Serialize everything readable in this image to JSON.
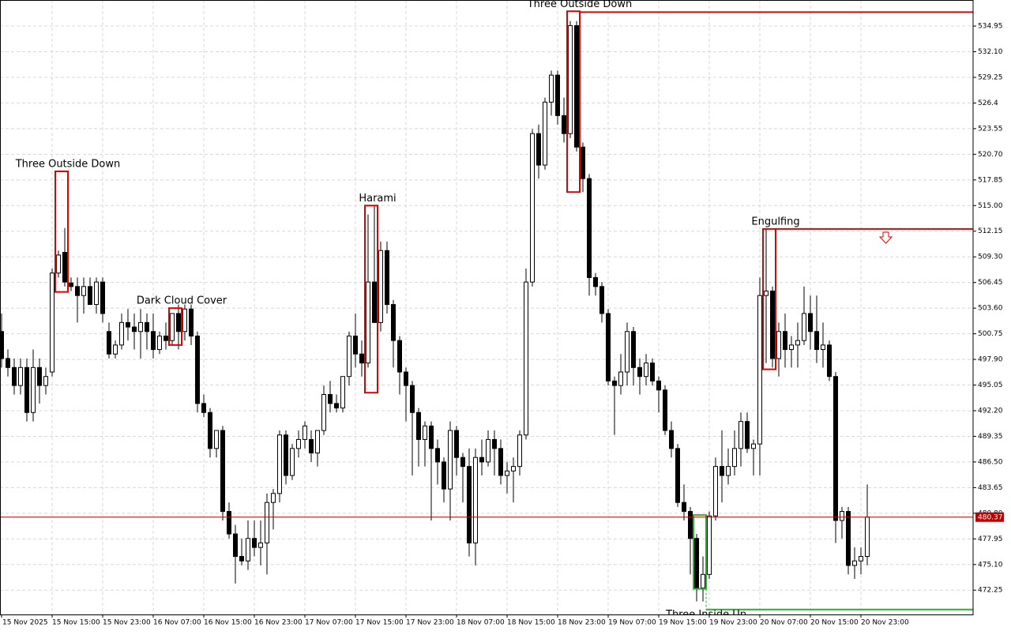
{
  "chart_data": {
    "type": "candlestick",
    "up_color": "#ffffff",
    "down_color": "#000000",
    "outline_color": "#000000",
    "grid": true,
    "ylim": [
      469.55,
      537.85
    ],
    "yticks": [
      534.95,
      {
        "value": 532.1,
        "label": "532.10"
      },
      529.25,
      526.4,
      523.55,
      {
        "value": 520.7,
        "label": "520.70"
      },
      517.85,
      {
        "value": 515,
        "label": "515.00"
      },
      512.15,
      {
        "value": 509.3,
        "label": "509.30"
      },
      506.45,
      {
        "value": 503.6,
        "label": "503.60"
      },
      500.75,
      {
        "value": 497.9,
        "label": "497.90"
      },
      495.05,
      {
        "value": 492.2,
        "label": "492.20"
      },
      489.35,
      {
        "value": 486.5,
        "label": "486.50"
      },
      483.65,
      {
        "value": 480.8,
        "label": "480.80"
      },
      477.95,
      {
        "value": 475.1,
        "label": "475.10"
      },
      472.25
    ],
    "last_price": 480.37,
    "last_price_color": "#c00000",
    "categories": [
      "15 Nov 2025",
      null,
      null,
      null,
      null,
      null,
      null,
      null,
      "15 Nov 15:00",
      null,
      null,
      null,
      null,
      null,
      null,
      null,
      "15 Nov 23:00",
      null,
      null,
      null,
      null,
      null,
      null,
      null,
      "16 Nov 07:00",
      null,
      null,
      null,
      null,
      null,
      null,
      null,
      "16 Nov 15:00",
      null,
      null,
      null,
      null,
      null,
      null,
      null,
      "16 Nov 23:00",
      null,
      null,
      null,
      null,
      null,
      null,
      null,
      "17 Nov 07:00",
      null,
      null,
      null,
      null,
      null,
      null,
      null,
      "17 Nov 15:00",
      null,
      null,
      null,
      null,
      null,
      null,
      null,
      "17 Nov 23:00",
      null,
      null,
      null,
      null,
      null,
      null,
      null,
      "18 Nov 07:00",
      null,
      null,
      null,
      null,
      null,
      null,
      null,
      "18 Nov 15:00",
      null,
      null,
      null,
      null,
      null,
      null,
      null,
      "18 Nov 23:00",
      null,
      null,
      null,
      null,
      null,
      null,
      null,
      "19 Nov 07:00",
      null,
      null,
      null,
      null,
      null,
      null,
      null,
      "19 Nov 15:00",
      null,
      null,
      null,
      null,
      null,
      null,
      null,
      "19 Nov 23:00",
      null,
      null,
      null,
      null,
      null,
      null,
      null,
      "20 Nov 07:00",
      null,
      null,
      null,
      null,
      null,
      null,
      null,
      "20 Nov 15:00",
      null,
      null,
      null,
      null,
      null,
      null,
      null,
      "20 Nov 23:00",
      null
    ],
    "open": [
      501,
      498,
      497,
      495,
      497,
      492,
      497,
      495,
      496.5,
      507.5,
      509.8,
      506.4,
      506,
      505,
      506,
      504,
      506.5,
      501,
      498.5,
      499.5,
      502,
      501.5,
      501,
      502,
      501,
      499,
      500.5,
      500,
      503,
      501,
      503.5,
      500.5,
      493,
      492,
      488,
      490,
      481,
      478.5,
      476,
      475.5,
      478,
      477,
      477.5,
      482,
      483,
      489.5,
      485,
      488,
      489,
      489,
      487.5,
      490,
      494,
      493,
      492.5,
      496,
      500.5,
      498.5,
      497.5,
      506.5,
      502,
      510,
      504,
      500,
      496.5,
      495,
      492,
      489,
      490.5,
      488,
      486.5,
      483.5,
      490,
      487,
      486,
      477.5,
      487,
      486.5,
      489,
      488,
      485,
      485.5,
      486,
      489.5,
      506.5,
      523,
      519.5,
      526.5,
      529.5,
      525,
      523,
      535,
      521.5,
      518,
      507,
      506,
      503,
      495.5,
      495,
      496.5,
      501,
      497,
      496,
      497.5,
      495.5,
      494.5,
      490,
      488,
      482,
      481,
      478,
      472.5,
      474,
      480.5,
      486,
      485,
      486,
      488,
      491,
      488,
      488.5,
      505,
      505.5,
      498,
      501,
      499,
      499.5,
      500,
      503,
      501,
      499,
      499.5,
      496,
      480,
      481,
      475,
      475.5,
      476
    ],
    "high": [
      503,
      499,
      498,
      498,
      498,
      499,
      498,
      497,
      508,
      510,
      512.5,
      507,
      507,
      507,
      507,
      507,
      507,
      502,
      500,
      503,
      503.5,
      503,
      503.5,
      503,
      503,
      501,
      502,
      503,
      504,
      504,
      504,
      501,
      494,
      492.5,
      490,
      490.5,
      482,
      479.5,
      478,
      480,
      480,
      480,
      483,
      483.5,
      490,
      490,
      488.5,
      490,
      491,
      490,
      490,
      495,
      495.5,
      494,
      496,
      501,
      503,
      500,
      514,
      515,
      511,
      511,
      504.5,
      500.5,
      497,
      495.5,
      492.5,
      491,
      491,
      489,
      487,
      491,
      490.5,
      487.5,
      488,
      488,
      489,
      490,
      490,
      489,
      486.5,
      487,
      490,
      508,
      523.5,
      524,
      527,
      530,
      530,
      527,
      535.5,
      535.5,
      522,
      518.5,
      507.5,
      506.5,
      503.5,
      496,
      498.5,
      502,
      501.5,
      498,
      498.5,
      498,
      496,
      495,
      491,
      488.5,
      484,
      481.5,
      478.5,
      476,
      481,
      487,
      490,
      488,
      490,
      492,
      492,
      489,
      507,
      512.5,
      506,
      502,
      503,
      500.5,
      502,
      506,
      505,
      505,
      502,
      500,
      496.5,
      481.5,
      481.5,
      477,
      477,
      484
    ],
    "low": [
      497,
      496,
      494,
      494,
      491,
      491,
      493,
      494,
      496,
      507,
      506,
      505.5,
      502,
      503,
      504,
      503,
      502,
      498,
      498,
      499,
      500,
      499,
      498,
      499,
      498,
      498.5,
      499,
      499.5,
      499,
      500,
      499.5,
      492,
      491.5,
      487,
      487,
      480,
      478,
      473,
      475,
      474.5,
      476,
      475,
      474,
      479,
      482,
      484,
      484.5,
      487,
      488,
      486.5,
      486,
      489.5,
      492,
      492,
      492,
      495,
      497,
      496,
      497,
      502,
      501,
      503,
      497,
      494,
      491,
      485,
      486,
      486,
      480,
      484,
      482,
      480,
      485,
      482,
      476,
      475,
      485,
      486,
      485,
      484,
      483,
      482,
      485,
      489,
      506,
      518,
      519,
      525,
      524,
      522,
      522.5,
      521,
      516.5,
      505,
      505,
      502,
      495,
      489.5,
      494,
      495,
      495,
      494,
      495,
      495,
      492,
      489.5,
      487,
      481.5,
      480,
      474,
      471,
      471,
      473.5,
      480,
      482,
      484,
      485,
      486,
      487.5,
      485,
      485,
      497.5,
      497,
      496,
      497,
      497,
      497,
      499.5,
      499,
      497.5,
      497,
      495.5,
      477.5,
      478,
      474,
      473.5,
      474,
      475
    ],
    "close": [
      498,
      497,
      495,
      497,
      492,
      497,
      495,
      496,
      507.5,
      509.5,
      506.5,
      506,
      505,
      506,
      504,
      506.5,
      503,
      498.5,
      499.5,
      502,
      501.5,
      501,
      502,
      501,
      499,
      500.5,
      500,
      503,
      501,
      503.5,
      500.5,
      493,
      492,
      488,
      490,
      481,
      478.5,
      476,
      475.5,
      478,
      477,
      477.5,
      482,
      483,
      489.5,
      485,
      488,
      489,
      490.5,
      487.5,
      490,
      494,
      493,
      492.5,
      496,
      500.5,
      498.5,
      497.5,
      506.5,
      502,
      510,
      504,
      500,
      496.5,
      495,
      492,
      489,
      490.5,
      488,
      486.5,
      483.5,
      490,
      487,
      486,
      477.5,
      487,
      486.5,
      489,
      488,
      485,
      485.5,
      486,
      489.5,
      506.5,
      523,
      519.5,
      526.5,
      529.5,
      525,
      523,
      535,
      521.5,
      518,
      507,
      506,
      503,
      495.5,
      495,
      496.5,
      501,
      497,
      496,
      497.5,
      495.5,
      494.5,
      490,
      488,
      482,
      481,
      478,
      472.5,
      474,
      480.5,
      486,
      485,
      486,
      488,
      491,
      488,
      488.5,
      505,
      505.5,
      498,
      501,
      499,
      499.5,
      500,
      503,
      501,
      499,
      499.5,
      496,
      480,
      481,
      475,
      475.5,
      476,
      480.37
    ],
    "patterns": [
      {
        "label": "Three Outside Down",
        "color": "#e00000",
        "start": 9,
        "end": 10,
        "top": 518.8,
        "bottom": 505.4
      },
      {
        "label": "Dark Cloud Cover",
        "color": "#e00000",
        "start": 27,
        "end": 28,
        "top": 503.6,
        "bottom": 499.5
      },
      {
        "label": "Harami",
        "color": "#e00000",
        "start": 58,
        "end": 59,
        "top": 515,
        "bottom": 494.2
      },
      {
        "label": "Three Outside Down",
        "color": "#e00000",
        "start": 90,
        "end": 91,
        "top": 536.6,
        "bottom": 516.5,
        "level": 536.5
      },
      {
        "label": "Engulfing",
        "color": "#e00000",
        "start": 121,
        "end": 122,
        "top": 512.4,
        "bottom": 496.8,
        "level": 512.4
      },
      {
        "label": "Three Inside Up",
        "color": "#33aa33",
        "start": 110,
        "end": 111,
        "top": 480.6,
        "bottom": 472.4,
        "level": 470.1
      }
    ]
  }
}
